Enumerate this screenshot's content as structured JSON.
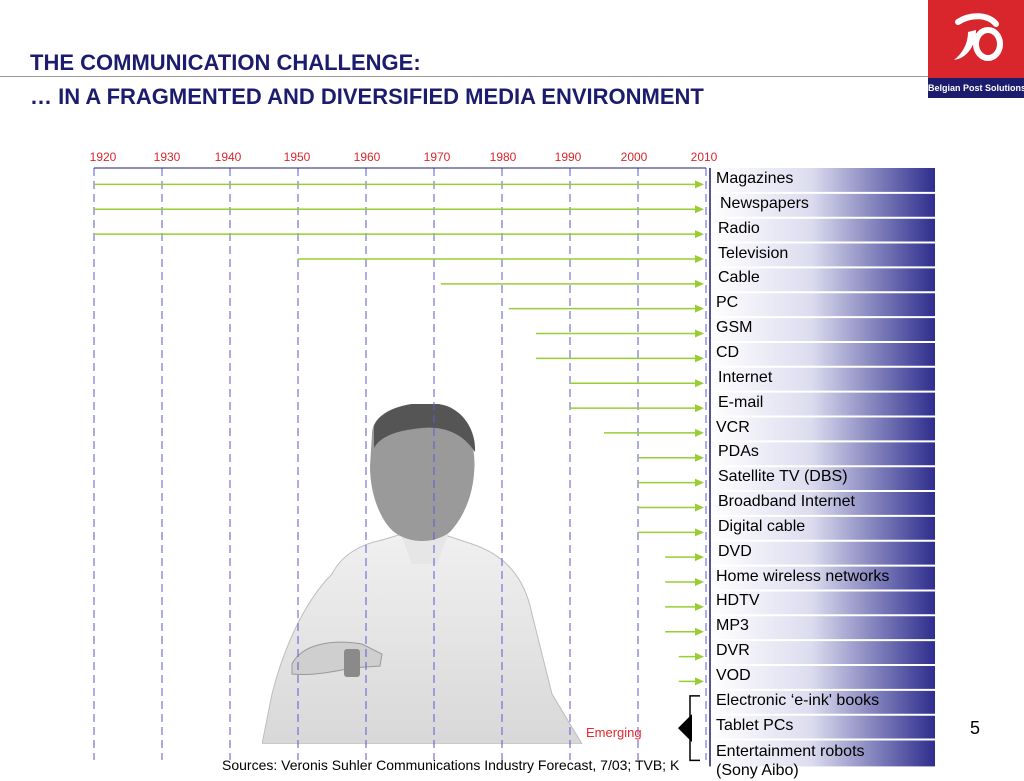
{
  "slide": {
    "title_line1": "THE COMMUNICATION CHALLENGE:",
    "title_line2": "… IN A FRAGMENTED AND DIVERSIFIED MEDIA ENVIRONMENT",
    "logo_text": "Belgian Post Solutions",
    "emerging_label": "Emerging",
    "page_number": "5",
    "sources": "Sources: Veronis Suhler Communications Industry Forecast, 7/03; TVB; K"
  },
  "colors": {
    "title": "#1c1c6e",
    "year_labels": "#d9262c",
    "gridlines": "#5a5ad0",
    "arrows": "#9acd32",
    "panel_dark": "#2e2e8e",
    "emerging": "#e8262c"
  },
  "timeline": {
    "years": [
      "1920",
      "1930",
      "1940",
      "1950",
      "1960",
      "1970",
      "1980",
      "1990",
      "2000",
      "2010"
    ]
  },
  "media": [
    {
      "label": "Magazines",
      "start": 1920
    },
    {
      "label": "Newspapers",
      "start": 1920
    },
    {
      "label": "Radio",
      "start": 1920
    },
    {
      "label": "Television",
      "start": 1950
    },
    {
      "label": "Cable",
      "start": 1971
    },
    {
      "label": "PC",
      "start": 1981
    },
    {
      "label": "GSM",
      "start": 1985
    },
    {
      "label": "CD",
      "start": 1985
    },
    {
      "label": "Internet",
      "start": 1990
    },
    {
      "label": "E-mail",
      "start": 1990
    },
    {
      "label": "VCR",
      "start": 1995
    },
    {
      "label": "PDAs",
      "start": 2000
    },
    {
      "label": "Satellite TV (DBS)",
      "start": 2000
    },
    {
      "label": "Broadband Internet",
      "start": 2000
    },
    {
      "label": "Digital cable",
      "start": 2000
    },
    {
      "label": "DVD",
      "start": 2004
    },
    {
      "label": "Home wireless networks",
      "start": 2004
    },
    {
      "label": "HDTV",
      "start": 2004
    },
    {
      "label": "MP3",
      "start": 2004
    },
    {
      "label": "DVR",
      "start": 2006
    },
    {
      "label": "VOD",
      "start": 2006
    },
    {
      "label": "Electronic ‘e-ink' books",
      "start": null
    },
    {
      "label": "Tablet PCs",
      "start": null
    },
    {
      "label": "Entertainment robots (Sony Aibo)",
      "start": null
    }
  ]
}
